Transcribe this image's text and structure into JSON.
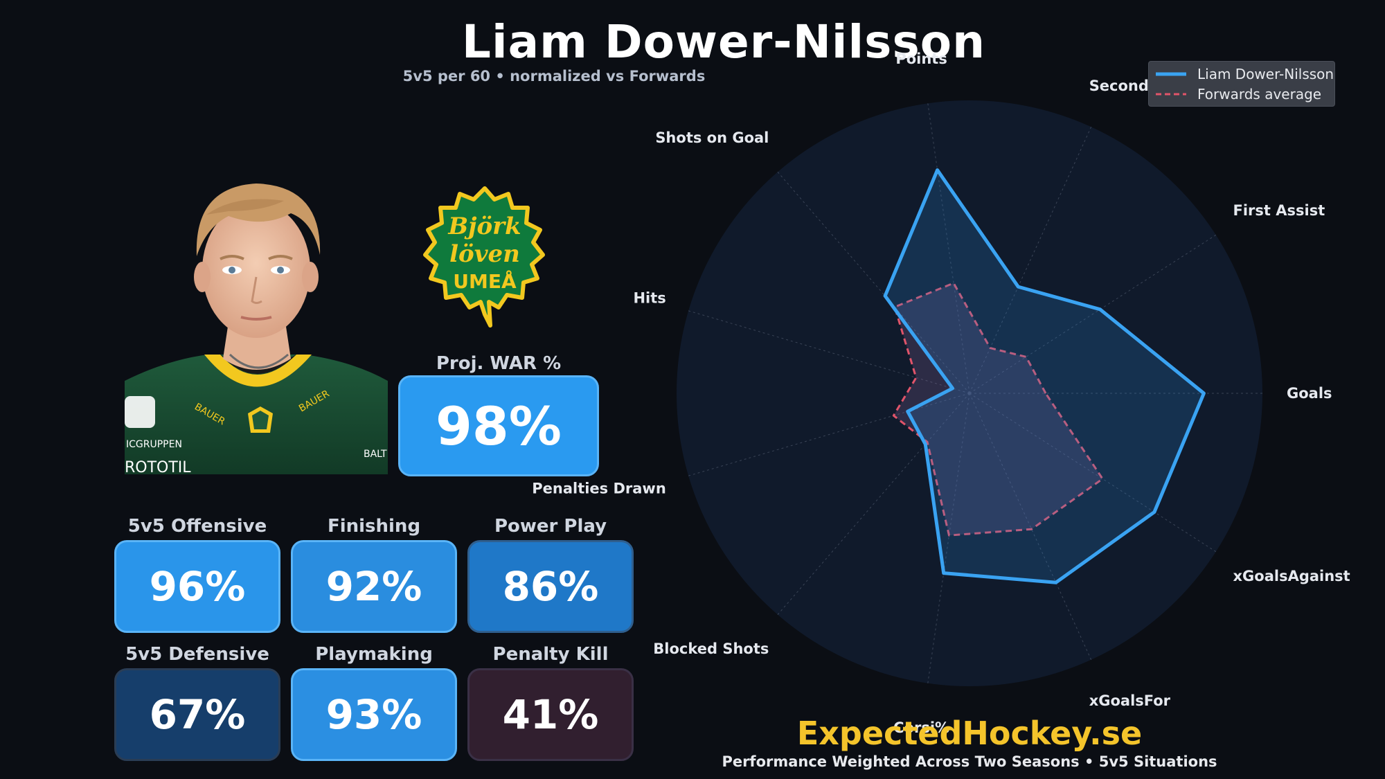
{
  "header": {
    "player_name": "Liam Dower-Nilsson",
    "subtitle": "5v5 per 60  •  normalized vs Forwards"
  },
  "colors": {
    "background": "#0b0e14",
    "player_line": "#3aa3f2",
    "average_line": "#e0546a",
    "brand": "#f4c42b",
    "logo_green": "#0f7a3c",
    "logo_yellow": "#f2c81f"
  },
  "player_photo": {
    "jersey_text_1": "ICGRUPPEN",
    "jersey_text_2": "BAUER",
    "jersey_text_3": "BALT",
    "jersey_text_4": "ROTOTIL"
  },
  "team_logo": {
    "line1": "Björk",
    "line2": "löven",
    "line3": "UMEÅ"
  },
  "tiles": {
    "war": {
      "label": "Proj. WAR %",
      "value": "98%",
      "color": "#2a9af0"
    },
    "offensive": {
      "label": "5v5 Offensive",
      "value": "96%",
      "color": "#2a95ea"
    },
    "finishing": {
      "label": "Finishing",
      "value": "92%",
      "color": "#2a8ddf"
    },
    "power_play": {
      "label": "Power Play",
      "value": "86%",
      "color": "#1f78c8"
    },
    "defensive": {
      "label": "5v5 Defensive",
      "value": "67%",
      "color": "#163e6b"
    },
    "playmaking": {
      "label": "Playmaking",
      "value": "93%",
      "color": "#2b8fe2"
    },
    "penalty_kill": {
      "label": "Penalty Kill",
      "value": "41%",
      "color": "#311f2f"
    }
  },
  "legend": {
    "player": "Liam Dower-Nilsson",
    "average": "Forwards average"
  },
  "chart_data": {
    "type": "radar",
    "axes": [
      "Goals",
      "First Assist",
      "Second Assist",
      "Points",
      "Shots on Goal",
      "Hits",
      "Penalties Drawn",
      "Blocked Shots",
      "Corsi%",
      "xGoalsFor",
      "xGoalsAgainst"
    ],
    "series": [
      {
        "name": "Liam Dower-Nilsson",
        "values": [
          0.8,
          0.53,
          0.4,
          0.77,
          0.44,
          0.06,
          0.22,
          0.23,
          0.62,
          0.71,
          0.75
        ]
      },
      {
        "name": "Forwards average",
        "values": [
          0.26,
          0.23,
          0.17,
          0.38,
          0.39,
          0.19,
          0.27,
          0.22,
          0.49,
          0.51,
          0.54
        ]
      }
    ],
    "range": [
      0,
      1
    ],
    "legend_position": "top-right",
    "grid": true
  },
  "branding": {
    "site": "ExpectedHockey.se",
    "footer": "Performance Weighted Across Two Seasons  •  5v5 Situations"
  }
}
